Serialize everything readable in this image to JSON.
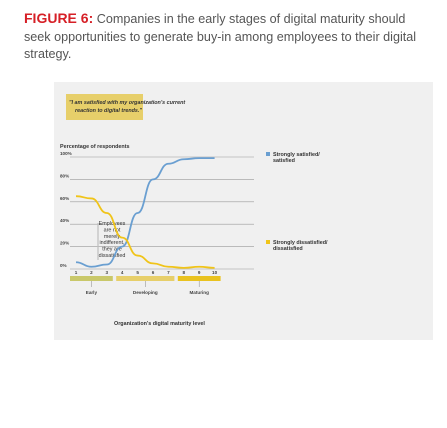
{
  "caption": {
    "figure_label": "FIGURE 6:",
    "text": " Companies in the early stages of digital maturity should seek opportunities to generate buy-in among employees to their digital strategy."
  },
  "colors": {
    "satisfied_line": "#6a9fd1",
    "dissatisfied_line": "#f0c419",
    "indifferent_line": "#bdbdbd",
    "early_band": "#c9c86a",
    "developing_band": "#e7cf6a",
    "maturing_band": "#e9c21f",
    "caption_red": "#d61f26"
  },
  "chart_data": {
    "type": "line",
    "callout": [
      "\"I am satisfied with my organization's current",
      "reaction to digital trends.\""
    ],
    "ylabel": "Percentage of respondents",
    "xlabel": "Organization's digital maturity level",
    "ylim": [
      0,
      100
    ],
    "yticks": [
      0,
      20,
      40,
      60,
      80,
      100
    ],
    "ytick_labels": [
      "0%",
      "20%",
      "40%",
      "60%",
      "80%",
      "100%"
    ],
    "x": [
      1,
      2,
      3,
      4,
      5,
      6,
      7,
      8,
      9,
      10
    ],
    "xtick_labels": [
      "1",
      "2",
      "3",
      "4",
      "5",
      "6",
      "7",
      "8",
      "9",
      "10"
    ],
    "stages": [
      {
        "label": "Early",
        "from": 1,
        "to": 3
      },
      {
        "label": "Developing",
        "from": 4,
        "to": 7
      },
      {
        "label": "Maturing",
        "from": 8,
        "to": 10
      }
    ],
    "series": [
      {
        "name": "Strongly satisfied/ satisfied",
        "legend_lines": [
          "Strongly satisfied/",
          "satisfied"
        ],
        "values": [
          6,
          2,
          4,
          20,
          50,
          80,
          94,
          98,
          99,
          99
        ]
      },
      {
        "name": "Strongly dissatisfied/ dissatisfied",
        "legend_lines": [
          "Strongly dissatisfied/",
          "dissatisfied"
        ],
        "values": [
          65,
          63,
          50,
          28,
          12,
          5,
          2,
          1,
          2,
          1
        ]
      }
    ],
    "annotation": [
      "Employees",
      "are not",
      "merely",
      "indifferent,",
      "they are",
      "dissatisfied"
    ]
  }
}
